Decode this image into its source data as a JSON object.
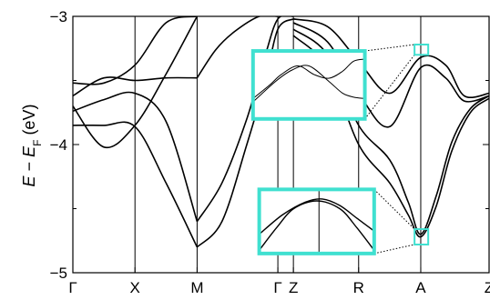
{
  "chart_data": {
    "type": "line",
    "title": "",
    "xlabel": "",
    "ylabel_parts": {
      "E": "E",
      "minus": " − ",
      "sub_E": "E",
      "sub_F": "F",
      "unit": " (eV)"
    },
    "ylim": [
      -5.0,
      -3.0
    ],
    "y_ticks": [
      -5,
      -4,
      -3
    ],
    "y_tick_labels": [
      "−5",
      "−4",
      "−3"
    ],
    "x_ticks": [
      0,
      1,
      2,
      3.3,
      3.55,
      4.6,
      5.6,
      6.7
    ],
    "x_tick_labels": [
      "Γ",
      "X",
      "M",
      "Γ",
      "Z",
      "R",
      "A",
      "Z"
    ],
    "xlim": [
      0,
      6.7
    ],
    "grid": false,
    "colors": {
      "bands": "#000000",
      "inset_box": "#40e0d0",
      "connector": "#000000"
    },
    "series": [
      {
        "values": [
          [
            0,
            -3.52
          ],
          [
            0.5,
            -3.52
          ],
          [
            1,
            -3.38
          ],
          [
            1.5,
            -3.05
          ],
          [
            2,
            -3.0
          ]
        ]
      },
      {
        "values": [
          [
            0,
            -3.62
          ],
          [
            0.5,
            -3.48
          ],
          [
            1,
            -3.5
          ],
          [
            1.5,
            -3.48
          ],
          [
            2,
            -3.48
          ]
        ]
      },
      {
        "values": [
          [
            0,
            -3.74
          ],
          [
            0.5,
            -3.65
          ],
          [
            1,
            -3.6
          ],
          [
            1.5,
            -3.82
          ],
          [
            2,
            -4.6
          ]
        ]
      },
      {
        "values": [
          [
            0,
            -3.7
          ],
          [
            0.5,
            -4.02
          ],
          [
            1,
            -3.85
          ],
          [
            1.5,
            -3.45
          ],
          [
            2,
            -3.0
          ]
        ]
      },
      {
        "values": [
          [
            0,
            -3.85
          ],
          [
            0.5,
            -3.85
          ],
          [
            1,
            -3.86
          ],
          [
            1.5,
            -4.3
          ],
          [
            2,
            -4.8
          ]
        ]
      },
      {
        "values": [
          [
            2,
            -3.48
          ],
          [
            2.3,
            -3.26
          ],
          [
            2.6,
            -3.12
          ],
          [
            3.0,
            -3.0
          ],
          [
            3.3,
            -3.0
          ]
        ]
      },
      {
        "values": [
          [
            2,
            -4.6
          ],
          [
            2.4,
            -4.3
          ],
          [
            2.8,
            -3.8
          ],
          [
            3.1,
            -3.3
          ],
          [
            3.3,
            -3.02
          ],
          [
            3.55,
            -3.0
          ]
        ]
      },
      {
        "values": [
          [
            2,
            -4.8
          ],
          [
            2.4,
            -4.6
          ],
          [
            2.8,
            -4.0
          ],
          [
            3.1,
            -3.5
          ],
          [
            3.3,
            -3.1
          ],
          [
            3.55,
            -3.02
          ]
        ]
      },
      {
        "values": [
          [
            3.55,
            -3.02
          ],
          [
            4.1,
            -3.08
          ],
          [
            4.6,
            -3.35
          ],
          [
            5.1,
            -3.6
          ],
          [
            5.6,
            -3.32
          ],
          [
            6.0,
            -3.38
          ],
          [
            6.3,
            -3.62
          ],
          [
            6.7,
            -3.6
          ]
        ]
      },
      {
        "values": [
          [
            3.55,
            -3.05
          ],
          [
            4.1,
            -3.2
          ],
          [
            4.6,
            -3.6
          ],
          [
            5.1,
            -3.86
          ],
          [
            5.6,
            -3.4
          ],
          [
            6.0,
            -3.48
          ],
          [
            6.3,
            -3.66
          ],
          [
            6.7,
            -3.62
          ]
        ]
      },
      {
        "values": [
          [
            3.55,
            -3.1
          ],
          [
            4.1,
            -3.3
          ],
          [
            4.6,
            -3.85
          ],
          [
            5.1,
            -4.12
          ],
          [
            5.4,
            -4.45
          ],
          [
            5.6,
            -4.7
          ],
          [
            5.85,
            -4.4
          ],
          [
            6.1,
            -3.98
          ],
          [
            6.4,
            -3.72
          ],
          [
            6.7,
            -3.62
          ]
        ]
      },
      {
        "values": [
          [
            3.55,
            -3.15
          ],
          [
            4.1,
            -3.4
          ],
          [
            4.6,
            -4.0
          ],
          [
            5.1,
            -4.3
          ],
          [
            5.4,
            -4.55
          ],
          [
            5.6,
            -4.72
          ],
          [
            5.85,
            -4.48
          ],
          [
            6.1,
            -4.05
          ],
          [
            6.4,
            -3.75
          ],
          [
            6.7,
            -3.64
          ]
        ]
      }
    ],
    "insets": [
      {
        "highlight_x": [
          5.5,
          5.72
        ],
        "highlight_y": [
          -3.3,
          -3.22
        ],
        "box_x": [
          2.9,
          4.7
        ],
        "box_y": [
          -3.8,
          -3.27
        ],
        "curves": [
          {
            "values": [
              [
                0,
                0.25
              ],
              [
                0.2,
                0.55
              ],
              [
                0.35,
                0.72
              ],
              [
                0.5,
                0.78
              ],
              [
                0.68,
                0.55
              ],
              [
                0.8,
                0.38
              ],
              [
                0.9,
                0.32
              ],
              [
                1,
                0.3
              ]
            ]
          },
          {
            "values": [
              [
                0,
                0.3
              ],
              [
                0.15,
                0.5
              ],
              [
                0.25,
                0.65
              ],
              [
                0.4,
                0.78
              ],
              [
                0.55,
                0.65
              ],
              [
                0.68,
                0.6
              ],
              [
                0.8,
                0.7
              ],
              [
                0.9,
                0.85
              ],
              [
                1,
                0.88
              ]
            ]
          }
        ]
      },
      {
        "highlight_x": [
          5.5,
          5.72
        ],
        "highlight_y": [
          -4.78,
          -4.66
        ],
        "box_x": [
          3.0,
          4.85
        ],
        "box_y": [
          -4.85,
          -4.35
        ],
        "curves": [
          {
            "values": [
              [
                0,
                0.05
              ],
              [
                0.15,
                0.4
              ],
              [
                0.3,
                0.7
              ],
              [
                0.5,
                0.82
              ],
              [
                0.7,
                0.7
              ],
              [
                0.85,
                0.4
              ],
              [
                1,
                0.05
              ]
            ]
          },
          {
            "values": [
              [
                0,
                0.3
              ],
              [
                0.2,
                0.6
              ],
              [
                0.4,
                0.8
              ],
              [
                0.55,
                0.85
              ],
              [
                0.7,
                0.75
              ],
              [
                0.85,
                0.55
              ],
              [
                1,
                0.35
              ]
            ]
          }
        ],
        "divider_x": 0.52
      }
    ]
  }
}
